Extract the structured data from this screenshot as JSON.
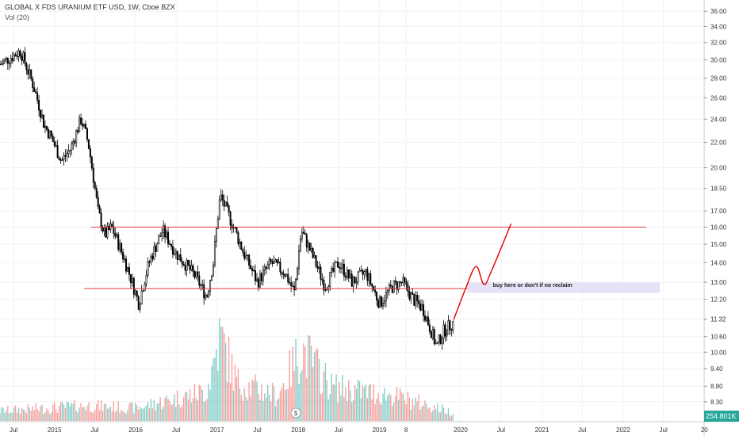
{
  "header": {
    "title": "GLOBAL X FDS URANIUM ETF USD, 1W, Cboe BZX",
    "volume_label": "Vol (20)"
  },
  "volume_marker": "254.801K",
  "colors": {
    "up": "#26a69a",
    "down": "#ef5350",
    "line": "#e53935",
    "projection": "#e00000",
    "box": "#e6e1f7",
    "candle": "#000000"
  },
  "chart_data": {
    "type": "candlestick",
    "title": "GLOBAL X FDS URANIUM ETF USD, 1W, Cboe BZX",
    "y_scale": "log",
    "ylim": [
      7.7,
      37.0
    ],
    "y_ticks": [
      36.0,
      34.0,
      32.0,
      30.0,
      28.0,
      26.0,
      24.0,
      22.0,
      20.0,
      18.5,
      17.0,
      16.0,
      15.0,
      14.0,
      13.0,
      12.2,
      11.32,
      10.6,
      10.0,
      9.4,
      8.8,
      8.3
    ],
    "y_tick_labels": [
      "36.00",
      "34.00",
      "32.00",
      "30.00",
      "28.00",
      "26.00",
      "24.00",
      "22.00",
      "20.00",
      "18.50",
      "17.00",
      "16.00",
      "15.00",
      "14.00",
      "13.00",
      "12.20",
      "11.32",
      "10.60",
      "10.00",
      "9.40",
      "8.80",
      "8.30"
    ],
    "xlim": [
      "2014-05-01",
      "2022-12-31"
    ],
    "x_ticks": [
      "2014-07-01",
      "2015-01-01",
      "2015-07-01",
      "2016-01-01",
      "2016-07-01",
      "2017-01-01",
      "2017-07-01",
      "2018-01-01",
      "2018-07-01",
      "2019-01-01",
      "2019-05-01",
      "2020-01-01",
      "2020-07-01",
      "2021-01-01",
      "2021-07-01",
      "2022-01-01",
      "2022-07-01",
      "2023-01-01"
    ],
    "x_tick_labels": [
      "Jul",
      "2015",
      "Jul",
      "2016",
      "Jul",
      "2017",
      "Jul",
      "2018",
      "Jul",
      "2019",
      "8",
      "2020",
      "Jul",
      "2021",
      "Jul",
      "2022",
      "Jul",
      "20"
    ],
    "price_path": [
      {
        "date": "2014-05-01",
        "close": 29.5
      },
      {
        "date": "2014-08-01",
        "close": 31.0
      },
      {
        "date": "2014-10-01",
        "close": 27.0
      },
      {
        "date": "2014-11-15",
        "close": 23.5
      },
      {
        "date": "2014-12-15",
        "close": 22.5
      },
      {
        "date": "2015-02-01",
        "close": 20.5
      },
      {
        "date": "2015-03-15",
        "close": 21.5
      },
      {
        "date": "2015-05-01",
        "close": 24.0
      },
      {
        "date": "2015-06-01",
        "close": 22.0
      },
      {
        "date": "2015-07-15",
        "close": 17.0
      },
      {
        "date": "2015-08-15",
        "close": 15.5
      },
      {
        "date": "2015-09-15",
        "close": 16.0
      },
      {
        "date": "2015-11-01",
        "close": 14.5
      },
      {
        "date": "2016-01-15",
        "close": 12.0
      },
      {
        "date": "2016-03-01",
        "close": 14.0
      },
      {
        "date": "2016-05-01",
        "close": 15.8
      },
      {
        "date": "2016-07-01",
        "close": 14.5
      },
      {
        "date": "2016-10-01",
        "close": 13.2
      },
      {
        "date": "2016-11-15",
        "close": 12.3
      },
      {
        "date": "2016-12-15",
        "close": 14.0
      },
      {
        "date": "2017-01-15",
        "close": 18.0
      },
      {
        "date": "2017-03-01",
        "close": 16.5
      },
      {
        "date": "2017-05-01",
        "close": 14.5
      },
      {
        "date": "2017-07-01",
        "close": 13.0
      },
      {
        "date": "2017-09-01",
        "close": 14.0
      },
      {
        "date": "2017-11-01",
        "close": 13.5
      },
      {
        "date": "2017-12-15",
        "close": 12.5
      },
      {
        "date": "2018-01-15",
        "close": 15.8
      },
      {
        "date": "2018-03-01",
        "close": 14.5
      },
      {
        "date": "2018-05-01",
        "close": 12.8
      },
      {
        "date": "2018-07-01",
        "close": 14.0
      },
      {
        "date": "2018-09-01",
        "close": 13.0
      },
      {
        "date": "2018-11-01",
        "close": 13.5
      },
      {
        "date": "2019-01-01",
        "close": 12.0
      },
      {
        "date": "2019-03-01",
        "close": 12.8
      },
      {
        "date": "2019-04-15",
        "close": 13.0
      },
      {
        "date": "2019-06-01",
        "close": 12.2
      },
      {
        "date": "2019-07-15",
        "close": 11.8
      },
      {
        "date": "2019-08-15",
        "close": 11.0
      },
      {
        "date": "2019-09-15",
        "close": 10.2
      },
      {
        "date": "2019-10-15",
        "close": 10.8
      },
      {
        "date": "2019-12-01",
        "close": 11.2
      }
    ],
    "volume_path": [
      {
        "date": "2014-05-01",
        "volume": 0.12
      },
      {
        "date": "2015-06-01",
        "volume": 0.18
      },
      {
        "date": "2016-01-01",
        "volume": 0.15
      },
      {
        "date": "2016-11-15",
        "volume": 0.35
      },
      {
        "date": "2017-01-15",
        "volume": 1.0
      },
      {
        "date": "2017-04-01",
        "volume": 0.45
      },
      {
        "date": "2017-10-01",
        "volume": 0.3
      },
      {
        "date": "2018-01-15",
        "volume": 0.85
      },
      {
        "date": "2018-06-01",
        "volume": 0.4
      },
      {
        "date": "2019-03-01",
        "volume": 0.3
      },
      {
        "date": "2019-12-01",
        "volume": 0.1
      }
    ],
    "horizontal_lines": [
      {
        "y": 16.0,
        "from": "2015-06-15",
        "to": "2022-04-15"
      },
      {
        "y": 12.7,
        "from": "2015-05-15",
        "to": "2022-04-15"
      }
    ],
    "annotation_box": {
      "text": "buy here or don't if no reclaim",
      "x_from": "2020-02-01",
      "x_to": "2022-06-15",
      "y_low": 12.5,
      "y_high": 13.0
    },
    "projection": [
      {
        "date": "2019-12-01",
        "y": 11.3
      },
      {
        "date": "2020-01-20",
        "y": 12.6
      },
      {
        "date": "2020-03-10",
        "y": 13.8
      },
      {
        "date": "2020-04-15",
        "y": 12.9
      },
      {
        "date": "2020-05-20",
        "y": 13.6
      },
      {
        "date": "2020-08-15",
        "y": 16.2
      }
    ]
  }
}
